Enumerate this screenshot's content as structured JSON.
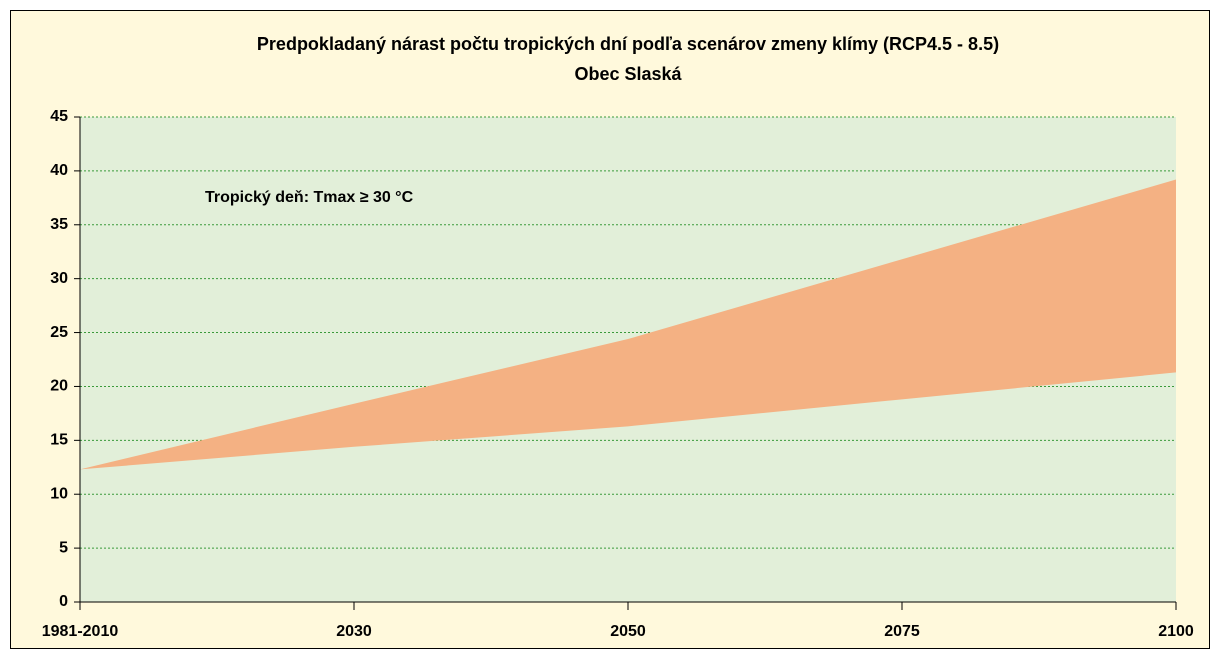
{
  "chart_data": {
    "type": "range",
    "title": "Predpokladaný nárast počtu tropických dní podľa scenárov zmeny klímy (RCP4.5 - 8.5)",
    "subtitle": "Obec Slaská",
    "annotation": "Tropický deň: Tmax ≥ 30 °C",
    "categories": [
      "1981-2010",
      "2030",
      "2050",
      "2075",
      "2100"
    ],
    "series": [
      {
        "color": "#f4b183",
        "low": [
          12.3,
          14.4,
          16.3,
          18.8,
          21.3
        ],
        "high": [
          12.3,
          18.4,
          24.4,
          31.8,
          39.2
        ]
      }
    ],
    "ylim": [
      0,
      45
    ],
    "yticks": [
      0,
      5,
      10,
      15,
      20,
      25,
      30,
      35,
      40,
      45
    ],
    "grid": true
  }
}
